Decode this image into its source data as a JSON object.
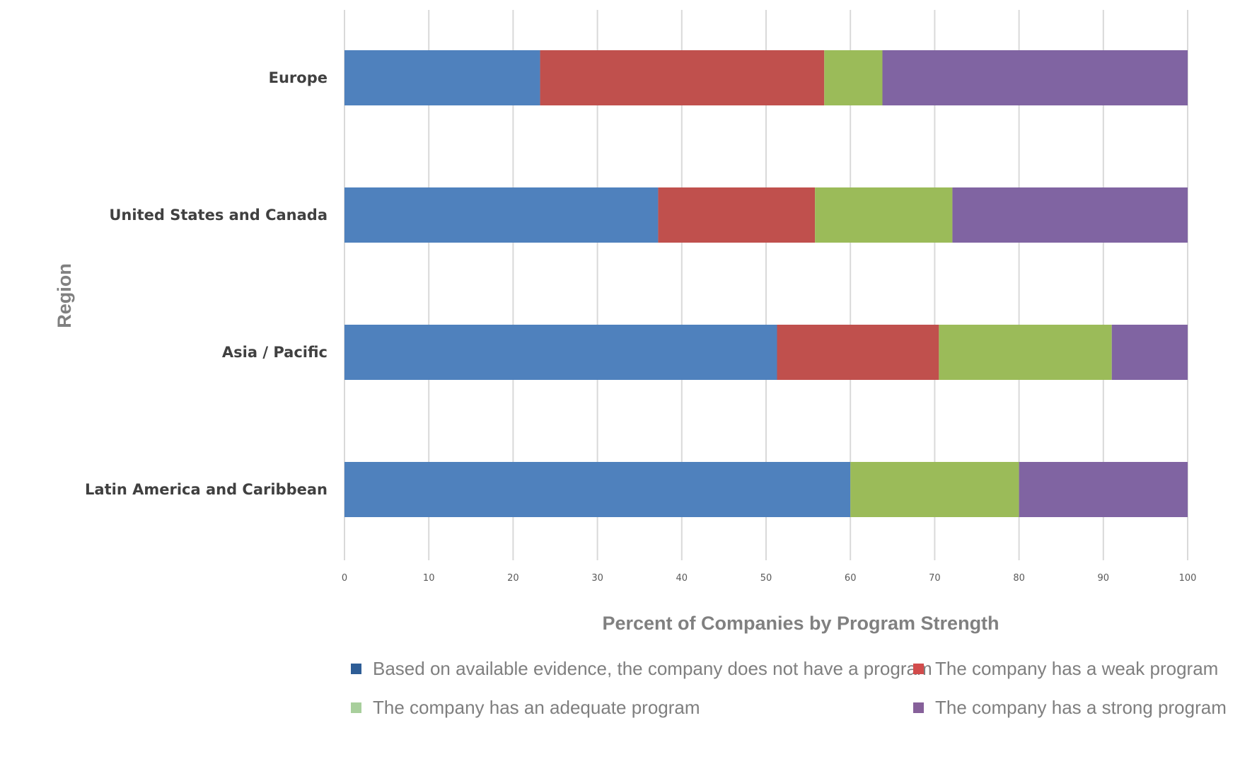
{
  "chart_data": {
    "type": "bar",
    "orientation": "horizontal",
    "stacked": true,
    "title": "",
    "xlabel": "Percent of Companies by Program Strength",
    "ylabel": "Region",
    "xlim": [
      0,
      100
    ],
    "xticks": [
      0,
      10,
      20,
      30,
      40,
      50,
      60,
      70,
      80,
      90,
      100
    ],
    "grid": true,
    "legend_position": "bottom",
    "categories": [
      "Europe",
      "United States and Canada",
      "Asia / Pacific",
      "Latin America and Caribbean"
    ],
    "series": [
      {
        "name": "Based on available evidence, the company does not have a program",
        "color": "#4f81bd",
        "legend_color": "#2e5d96",
        "values": [
          23.2,
          37.2,
          51.3,
          60.0
        ]
      },
      {
        "name": "The company has a weak program",
        "color": "#c0504d",
        "legend_color": "#d24b4b",
        "values": [
          33.7,
          18.6,
          19.2,
          0.0
        ]
      },
      {
        "name": "The company has an adequate program",
        "color": "#9bbb59",
        "legend_color": "#a8cf9c",
        "values": [
          6.9,
          16.3,
          20.5,
          20.0
        ]
      },
      {
        "name": "The company has a strong program",
        "color": "#8064a2",
        "legend_color": "#86609a",
        "values": [
          36.2,
          27.9,
          9.0,
          20.0
        ]
      }
    ]
  }
}
